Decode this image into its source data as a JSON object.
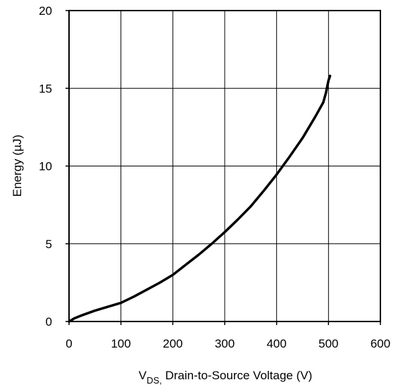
{
  "chart_data": {
    "type": "line",
    "title": "",
    "xlabel": {
      "main": "V",
      "subscript": "DS,",
      "rest": " Drain-to-Source Voltage (V)"
    },
    "ylabel": "Energy (µJ)",
    "xlim": [
      0,
      600
    ],
    "ylim": [
      0,
      20
    ],
    "x_ticks": [
      "0",
      "100",
      "200",
      "300",
      "400",
      "500",
      "600"
    ],
    "y_ticks": [
      "0",
      "5",
      "10",
      "15",
      "20"
    ],
    "grid": true,
    "legend": "none",
    "series": [
      {
        "color": "#000000",
        "x": [
          0,
          10,
          25,
          50,
          75,
          100,
          125,
          150,
          175,
          200,
          225,
          250,
          275,
          300,
          325,
          350,
          375,
          400,
          425,
          450,
          475,
          490,
          495,
          500,
          503
        ],
        "y": [
          0,
          0.2,
          0.4,
          0.7,
          0.95,
          1.2,
          1.6,
          2.05,
          2.5,
          3.0,
          3.65,
          4.3,
          5.0,
          5.75,
          6.55,
          7.4,
          8.4,
          9.45,
          10.6,
          11.8,
          13.2,
          14.1,
          14.7,
          15.5,
          15.8
        ]
      }
    ]
  }
}
